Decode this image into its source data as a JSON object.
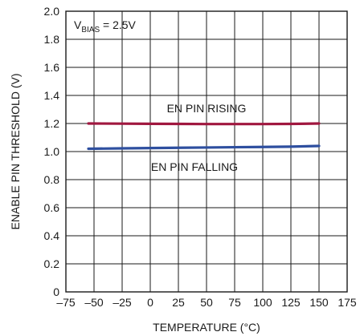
{
  "chart_data": {
    "type": "line",
    "title": "",
    "xlabel": "TEMPERATURE (°C)",
    "ylabel": "ENABLE PIN THRESHOLD (V)",
    "xlim": [
      -75,
      175
    ],
    "ylim": [
      0,
      2.0
    ],
    "x_ticks": [
      -75,
      -50,
      -25,
      0,
      25,
      50,
      75,
      100,
      125,
      150,
      175
    ],
    "x_tick_labels": [
      "–75",
      "–50",
      "–25",
      "0",
      "25",
      "50",
      "75",
      "100",
      "125",
      "150",
      "175"
    ],
    "y_ticks": [
      0,
      0.2,
      0.4,
      0.6,
      0.8,
      1.0,
      1.2,
      1.4,
      1.6,
      1.8,
      2.0
    ],
    "y_tick_labels": [
      "0",
      "0.2",
      "0.4",
      "0.6",
      "0.8",
      "1.0",
      "1.2",
      "1.4",
      "1.6",
      "1.8",
      "2.0"
    ],
    "grid": true,
    "series": [
      {
        "name": "EN PIN RISING",
        "color": "#a0173f",
        "x": [
          -55,
          -25,
          0,
          25,
          50,
          75,
          100,
          125,
          150
        ],
        "y": [
          1.2,
          1.199,
          1.198,
          1.197,
          1.196,
          1.196,
          1.196,
          1.197,
          1.2
        ]
      },
      {
        "name": "EN PIN FALLING",
        "color": "#2e4f9f",
        "x": [
          -55,
          -25,
          0,
          25,
          50,
          75,
          100,
          125,
          150
        ],
        "y": [
          1.02,
          1.023,
          1.025,
          1.027,
          1.029,
          1.031,
          1.033,
          1.035,
          1.04
        ]
      }
    ],
    "annotations": {
      "bias_main": "V",
      "bias_sub": "BIAS",
      "bias_value": " = 2.5V"
    }
  }
}
